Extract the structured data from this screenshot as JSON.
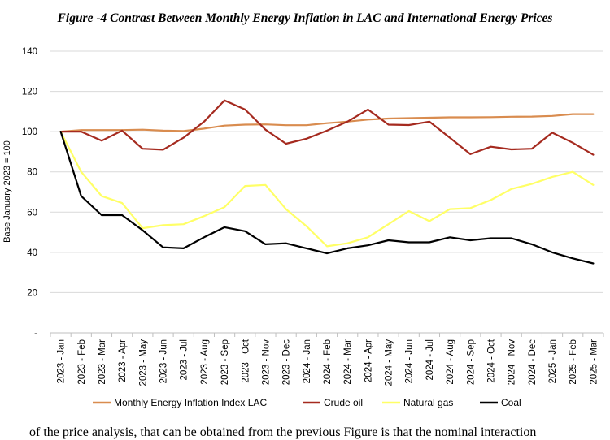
{
  "figure_title": "Figure -4 Contrast Between Monthly Energy Inflation in LAC and International Energy Prices",
  "body_text_fragment": "of the price analysis, that can be obtained from the previous Figure is that the nominal interaction",
  "chart_data": {
    "type": "line",
    "ylabel": "Base January 2023 = 100",
    "ylim": [
      0,
      140
    ],
    "yticks": [
      0,
      20,
      40,
      60,
      80,
      100,
      120,
      140
    ],
    "ytick_labels": [
      "-",
      "20",
      "40",
      "60",
      "80",
      "100",
      "120",
      "140"
    ],
    "grid": "horizontal",
    "legend_position": "bottom",
    "categories": [
      "2023 - Jan",
      "2023 - Feb",
      "2023 - Mar",
      "2023 - Apr",
      "2023 - May",
      "2023 - Jun",
      "2023 - Jul",
      "2023 - Aug",
      "2023 - Sep",
      "2023 - Oct",
      "2023 - Nov",
      "2023 - Dec",
      "2024 - Jan",
      "2024 - Feb",
      "2024 - Mar",
      "2024 - Apr",
      "2024 - May",
      "2024 - Jun",
      "2024 - Jul",
      "2024 - Aug",
      "2024 - Sep",
      "2024 - Oct",
      "2024 - Nov",
      "2024 - Dec",
      "2025 - Jan",
      "2025 - Feb",
      "2025 - Mar"
    ],
    "series": [
      {
        "name": "Monthly Energy Inflation Index LAC",
        "color": "#D98C4F",
        "values": [
          100,
          100.8,
          100.8,
          100.8,
          101,
          100.5,
          100.3,
          101.5,
          103,
          103.5,
          103.6,
          103.2,
          103.2,
          104.2,
          105,
          106,
          106.5,
          106.7,
          106.9,
          107.1,
          107.1,
          107.2,
          107.4,
          107.5,
          107.8,
          108.7,
          108.7
        ]
      },
      {
        "name": "Crude oil",
        "color": "#A52A1F",
        "values": [
          100,
          100,
          95.5,
          100.5,
          91.5,
          91,
          97,
          105,
          115.5,
          111,
          101,
          94,
          96.5,
          100.5,
          105,
          111,
          103.5,
          103.3,
          105,
          97,
          88.8,
          92.5,
          91.2,
          91.5,
          99.5,
          94.5,
          88.5
        ]
      },
      {
        "name": "Natural gas",
        "color": "#FFFF66",
        "values": [
          100,
          80,
          68,
          64.5,
          52,
          53.5,
          54,
          58,
          62.5,
          73,
          73.5,
          61.5,
          53,
          43,
          44.5,
          47.5,
          54,
          60.5,
          55.5,
          61.5,
          62,
          66,
          71.5,
          74,
          77.5,
          80,
          73.5
        ]
      },
      {
        "name": "Coal",
        "color": "#000000",
        "values": [
          100,
          68,
          58.5,
          58.5,
          51,
          42.5,
          42,
          47.5,
          52.5,
          50.5,
          44,
          44.5,
          42,
          39.5,
          42,
          43.5,
          46,
          45,
          45,
          47.5,
          46,
          47,
          47,
          44,
          40,
          37,
          34.5
        ]
      }
    ]
  }
}
